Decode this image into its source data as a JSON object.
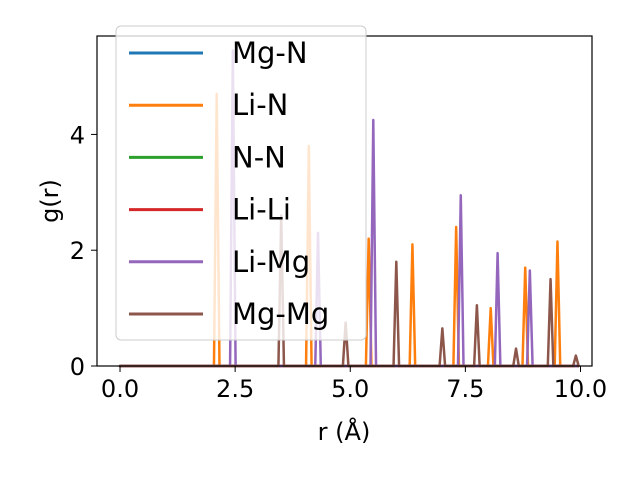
{
  "chart_data": {
    "type": "line",
    "title": "",
    "xlabel": "r (Å)",
    "ylabel": "g(r)",
    "xlim": [
      -0.5,
      10.25
    ],
    "ylim": [
      0,
      5.7
    ],
    "x_ticks": [
      {
        "value": 0.0,
        "label": "0.0"
      },
      {
        "value": 2.5,
        "label": "2.5"
      },
      {
        "value": 5.0,
        "label": "5.0"
      },
      {
        "value": 7.5,
        "label": "7.5"
      },
      {
        "value": 10.0,
        "label": "10.0"
      }
    ],
    "y_ticks": [
      {
        "value": 0,
        "label": "0"
      },
      {
        "value": 2,
        "label": "2"
      },
      {
        "value": 4,
        "label": "4"
      }
    ],
    "grid": false,
    "legend_position": "top-left",
    "series": [
      {
        "name": "Mg-N",
        "color": "#1f77b4",
        "peaks": []
      },
      {
        "name": "Li-N",
        "color": "#ff7f0e",
        "peaks": [
          [
            2.1,
            4.7
          ],
          [
            4.1,
            3.8
          ],
          [
            5.4,
            2.2
          ],
          [
            6.35,
            2.1
          ],
          [
            7.3,
            2.4
          ],
          [
            8.05,
            1.0
          ],
          [
            8.8,
            1.7
          ],
          [
            9.5,
            2.15
          ]
        ]
      },
      {
        "name": "N-N",
        "color": "#2ca02c",
        "peaks": []
      },
      {
        "name": "Li-Li",
        "color": "#d62728",
        "peaks": []
      },
      {
        "name": "Li-Mg",
        "color": "#9467bd",
        "peaks": [
          [
            2.45,
            5.45
          ],
          [
            4.3,
            2.3
          ],
          [
            5.5,
            4.25
          ],
          [
            7.4,
            2.95
          ],
          [
            8.2,
            1.95
          ],
          [
            8.9,
            1.65
          ]
        ]
      },
      {
        "name": "Mg-Mg",
        "color": "#8c564b",
        "peaks": [
          [
            3.5,
            2.6
          ],
          [
            4.9,
            0.75
          ],
          [
            6.0,
            1.8
          ],
          [
            7.0,
            0.65
          ],
          [
            7.75,
            1.05
          ],
          [
            8.6,
            0.3
          ],
          [
            9.35,
            1.5
          ],
          [
            9.9,
            0.18
          ]
        ]
      }
    ]
  }
}
